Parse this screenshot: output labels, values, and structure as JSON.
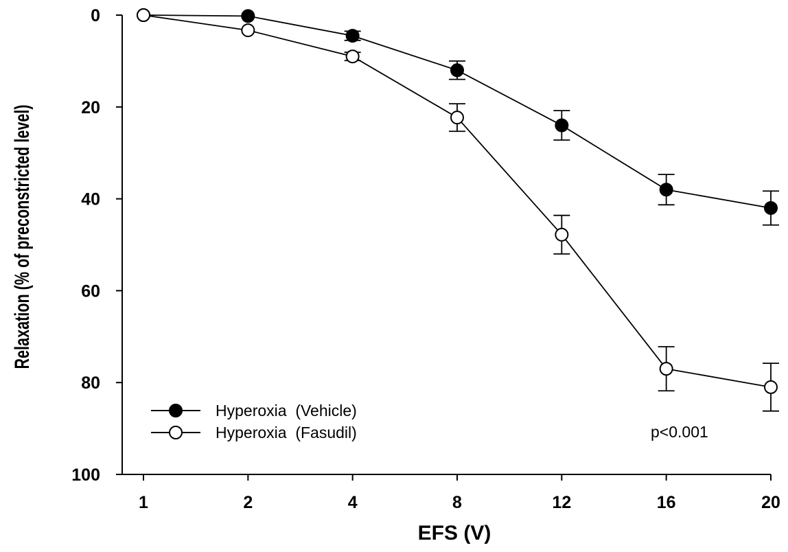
{
  "chart_data": {
    "type": "line",
    "title": "",
    "xlabel": "EFS (V)",
    "ylabel": "Relaxation (%  of preconstricted level)",
    "categories": [
      "1",
      "2",
      "4",
      "8",
      "12",
      "16",
      "20"
    ],
    "ylim": [
      0,
      100
    ],
    "y_inverted": true,
    "yticks": [
      0,
      20,
      40,
      60,
      80,
      100
    ],
    "grid": false,
    "legend_position": "bottom-left",
    "series": [
      {
        "name": "Hyperoxia  (Vehicle)",
        "marker": "filled-circle",
        "color": "#000000",
        "values": [
          0,
          0.2,
          4.5,
          12,
          24,
          38,
          42
        ],
        "errors": [
          0,
          0,
          1.0,
          2.0,
          3.2,
          3.3,
          3.7
        ]
      },
      {
        "name": "Hyperoxia  (Fasudil)",
        "marker": "open-circle",
        "color": "#000000",
        "values": [
          0,
          3.3,
          9,
          22.3,
          47.8,
          77,
          81
        ],
        "errors": [
          0,
          0,
          0.9,
          3.0,
          4.2,
          4.8,
          5.2
        ]
      }
    ],
    "annotations": [
      "p<0.001"
    ]
  }
}
